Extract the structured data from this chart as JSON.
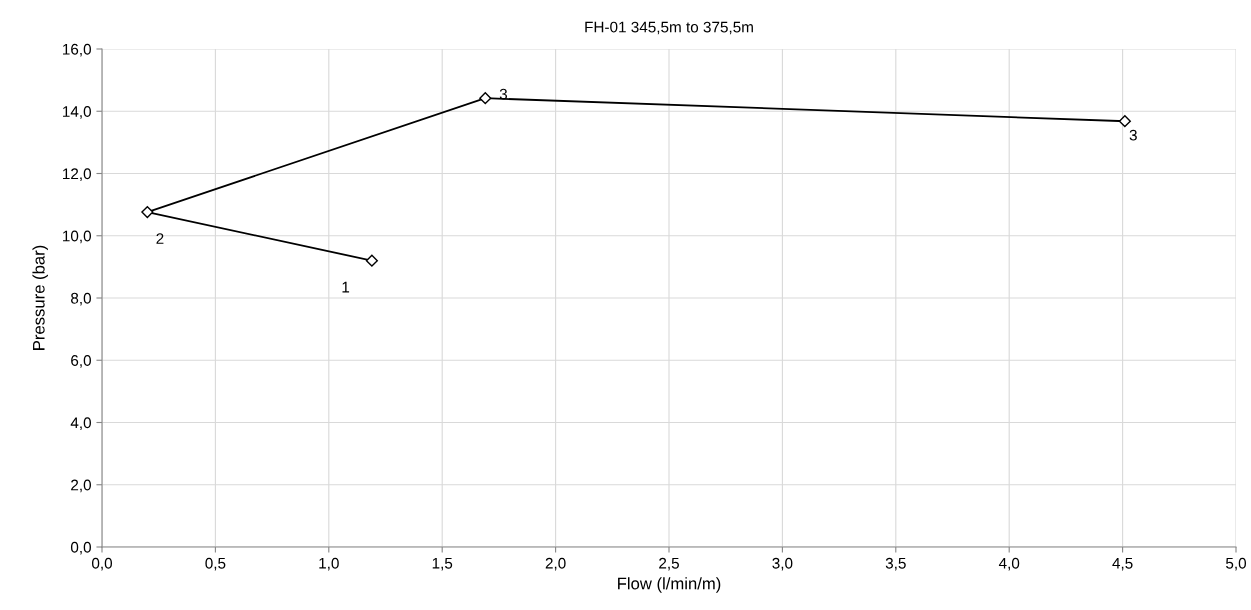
{
  "chart_data": {
    "type": "line",
    "title": "FH-01 345,5m to 375,5m",
    "xlabel": "Flow (l/min/m)",
    "ylabel": "Pressure (bar)",
    "x": [
      1.19,
      0.2,
      1.69,
      4.51
    ],
    "series": [
      {
        "color": "#000000",
        "values": [
          9.2,
          10.76,
          14.42,
          13.68
        ]
      }
    ],
    "marker": "diamond",
    "line_style": "solid",
    "grid": true,
    "xlim": [
      0,
      5
    ],
    "xticks": [
      {
        "value": 0,
        "label": "0,0"
      },
      {
        "value": 0.5,
        "label": "0,5"
      },
      {
        "value": 1,
        "label": "1,0"
      },
      {
        "value": 1.5,
        "label": "1,5"
      },
      {
        "value": 2,
        "label": "2,0"
      },
      {
        "value": 2.5,
        "label": "2,5"
      },
      {
        "value": 3,
        "label": "3,0"
      },
      {
        "value": 3.5,
        "label": "3,5"
      },
      {
        "value": 4,
        "label": "4,0"
      },
      {
        "value": 4.5,
        "label": "4,5"
      },
      {
        "value": 5,
        "label": "5,0"
      }
    ],
    "ylim": [
      0,
      16
    ],
    "yticks": [
      {
        "value": 0,
        "label": "0,0"
      },
      {
        "value": 2,
        "label": "2,0"
      },
      {
        "value": 4,
        "label": "4,0"
      },
      {
        "value": 6,
        "label": "6,0"
      },
      {
        "value": 8,
        "label": "8,0"
      },
      {
        "value": 10,
        "label": "10,0"
      },
      {
        "value": 12,
        "label": "12,0"
      },
      {
        "value": 14,
        "label": "14,0"
      },
      {
        "value": 16,
        "label": "16,0"
      }
    ],
    "annotations": [
      {
        "text": "1",
        "x": 1.19,
        "y": 9.2
      },
      {
        "text": "2",
        "x": 0.2,
        "y": 10.76
      },
      {
        "text": "3",
        "x": 1.69,
        "y": 14.42
      },
      {
        "text": "3",
        "x": 4.51,
        "y": 13.68
      }
    ]
  }
}
